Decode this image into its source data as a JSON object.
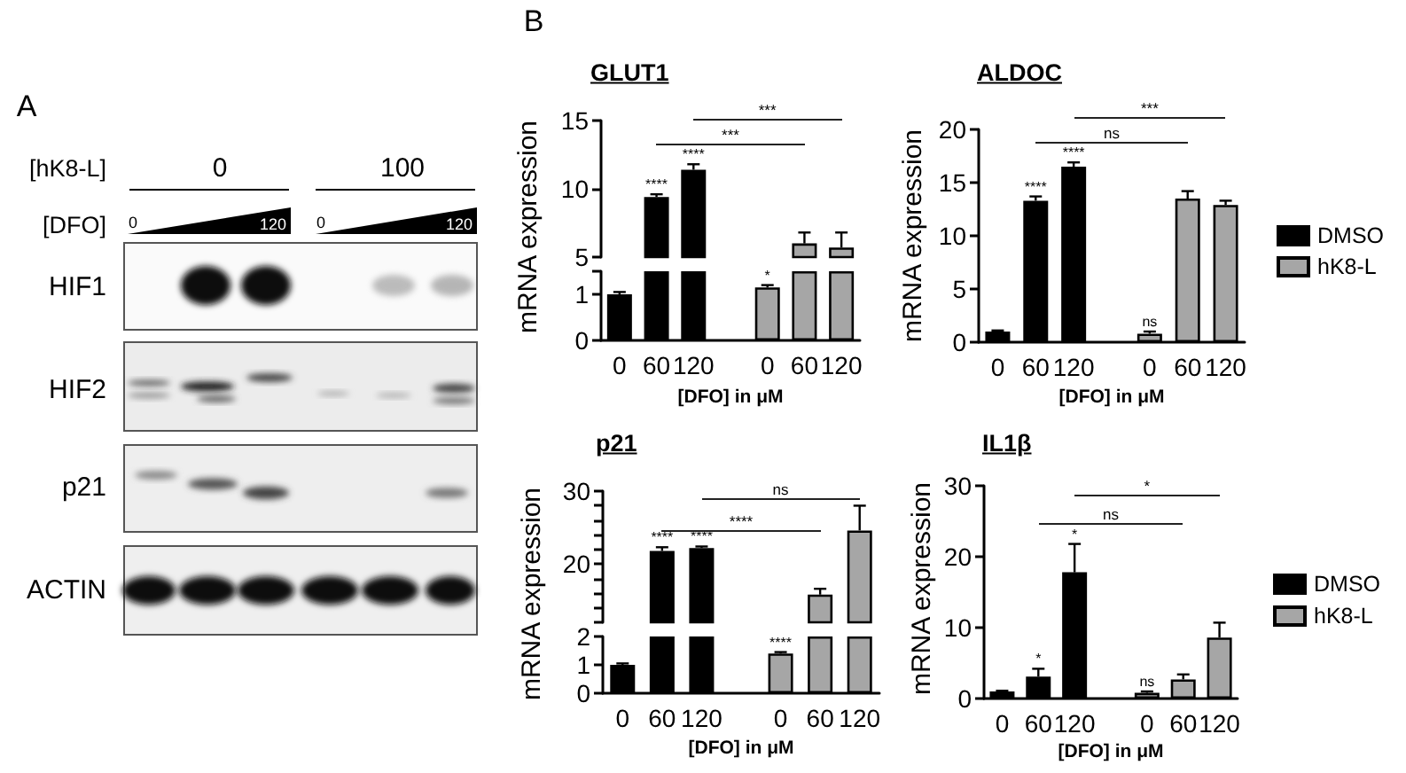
{
  "chart_data": [
    {
      "type": "other",
      "annotations": [
        "A",
        "B",
        "[hK8-L]",
        "0",
        "100",
        "[DFO]",
        "0",
        "120",
        "0",
        "120",
        "HIF1",
        "HIF2",
        "p21",
        "ACTIN"
      ]
    },
    {
      "type": "bar",
      "title": "GLUT1",
      "ylabel": "mRNA expression",
      "categories": [
        "0",
        "60",
        "120",
        null,
        "0",
        "60",
        "120"
      ],
      "series": [
        {
          "color": "#000000",
          "values": [
            null,
            9.4,
            11.4,
            null,
            null,
            null,
            null
          ],
          "errors": [
            null,
            [
              9.4,
              9.6
            ],
            [
              11.4,
              11.8
            ],
            null,
            null,
            null,
            null
          ],
          "value_labels": [
            null,
            "****",
            "****",
            null,
            null,
            null,
            null
          ]
        },
        {
          "color": "#a6a6a6",
          "values": [
            null,
            null,
            null,
            null,
            null,
            6.0,
            5.7
          ],
          "errors": [
            null,
            null,
            null,
            null,
            null,
            [
              6.0,
              6.8
            ],
            [
              5.7,
              6.8
            ]
          ]
        }
      ],
      "ylim": [
        5,
        15
      ],
      "yticks": [
        5,
        10,
        15
      ],
      "tick_labels": "y",
      "annotations": [
        "***",
        "***"
      ]
    },
    {
      "type": "bar",
      "xlabel": "[DFO] in μM",
      "categories": [
        "0",
        "60",
        "120",
        null,
        "0",
        "60",
        "120"
      ],
      "series": [
        {
          "color": "#000000",
          "values": [
            1.0,
            1.5,
            1.5,
            null,
            null,
            null,
            null
          ],
          "errors": [
            [
              1.0,
              1.05
            ],
            null,
            null,
            null,
            null,
            null,
            null
          ]
        },
        {
          "color": "#a6a6a6",
          "values": [
            null,
            null,
            null,
            null,
            1.15,
            1.5,
            1.5
          ],
          "errors": [
            null,
            null,
            null,
            null,
            [
              1.15,
              1.2
            ],
            null,
            null
          ],
          "value_labels": [
            null,
            null,
            null,
            null,
            "*",
            null,
            null
          ]
        }
      ],
      "ylim": [
        0,
        1.5
      ],
      "yticks": [
        0,
        1,
        {
          "value": 1.5,
          "label": null
        }
      ]
    },
    {
      "type": "bar",
      "title": "ALDOC",
      "ylabel": "mRNA expression",
      "xlabel": "[DFO] in μM",
      "categories": [
        "0",
        "60",
        "120",
        null,
        "0",
        "60",
        "120"
      ],
      "series": [
        {
          "name": "DMSO",
          "color": "#000000",
          "values": [
            1.0,
            13.3,
            16.5,
            null,
            null,
            null,
            null
          ],
          "errors": [
            [
              1.0,
              1.1
            ],
            [
              13.3,
              13.7
            ],
            [
              16.5,
              16.9
            ],
            null,
            null,
            null,
            null
          ],
          "value_labels": [
            null,
            "****",
            "****",
            null,
            null,
            null,
            null
          ]
        },
        {
          "name": "hK8-L",
          "color": "#a6a6a6",
          "values": [
            null,
            null,
            null,
            null,
            0.8,
            13.5,
            12.9
          ],
          "errors": [
            null,
            null,
            null,
            null,
            [
              0.8,
              1.0
            ],
            [
              13.5,
              14.2
            ],
            [
              12.9,
              13.3
            ]
          ],
          "value_labels": [
            null,
            null,
            null,
            null,
            "ns",
            null,
            null
          ]
        }
      ],
      "ylim": [
        0,
        20
      ],
      "yticks": [
        0,
        5,
        10,
        15,
        20
      ],
      "legend": "right",
      "annotations": [
        "***",
        "ns"
      ]
    },
    {
      "type": "bar",
      "title": "p21",
      "ylabel": "mRNA expression",
      "categories": [
        "0",
        "60",
        "120",
        null,
        "0",
        "60",
        "120"
      ],
      "series": [
        {
          "color": "#000000",
          "values": [
            null,
            21.8,
            22.2,
            null,
            null,
            null,
            null
          ],
          "errors": [
            null,
            [
              21.8,
              22.3
            ],
            [
              22.2,
              22.4
            ],
            null,
            null,
            null,
            null
          ],
          "value_labels": [
            null,
            "****",
            "****",
            null,
            null,
            null,
            null
          ]
        },
        {
          "color": "#a6a6a6",
          "values": [
            null,
            null,
            null,
            null,
            null,
            15.8,
            24.6
          ],
          "errors": [
            null,
            null,
            null,
            null,
            null,
            [
              15.8,
              16.6
            ],
            [
              24.6,
              28.0
            ]
          ]
        }
      ],
      "ylim": [
        12,
        30
      ],
      "yticks": [
        {
          "value": 12,
          "label": null
        },
        {
          "value": 14,
          "label": null
        },
        {
          "value": 16,
          "label": null
        },
        {
          "value": 18,
          "label": null
        },
        20,
        {
          "value": 22,
          "label": null
        },
        {
          "value": 24,
          "label": null
        },
        {
          "value": 26,
          "label": null
        },
        {
          "value": 28,
          "label": null
        },
        30
      ],
      "tick_labels": "y",
      "annotations": [
        "ns",
        "****"
      ]
    },
    {
      "type": "bar",
      "xlabel": "[DFO] in μM",
      "categories": [
        "0",
        "60",
        "120",
        null,
        "0",
        "60",
        "120"
      ],
      "series": [
        {
          "color": "#000000",
          "values": [
            1.0,
            2,
            2,
            null,
            null,
            null,
            null
          ],
          "errors": [
            [
              1.0,
              1.05
            ],
            null,
            null,
            null,
            null,
            null,
            null
          ]
        },
        {
          "color": "#a6a6a6",
          "values": [
            null,
            null,
            null,
            null,
            1.4,
            2,
            2
          ],
          "errors": [
            null,
            null,
            null,
            null,
            [
              1.4,
              1.45
            ],
            null,
            null
          ],
          "value_labels": [
            null,
            null,
            null,
            null,
            "****",
            null,
            null
          ]
        }
      ],
      "ylim": [
        0,
        2
      ],
      "yticks": [
        0,
        1,
        2
      ]
    },
    {
      "type": "bar",
      "title": "IL1β",
      "ylabel": "mRNA expression",
      "xlabel": "[DFO] in μM",
      "categories": [
        "0",
        "60",
        "120",
        null,
        "0",
        "60",
        "120"
      ],
      "series": [
        {
          "name": "DMSO",
          "color": "#000000",
          "values": [
            1.0,
            3.1,
            17.8,
            null,
            null,
            null,
            null
          ],
          "errors": [
            [
              1.0,
              1.1
            ],
            [
              3.1,
              4.2
            ],
            [
              17.8,
              21.8
            ],
            null,
            null,
            null,
            null
          ],
          "value_labels": [
            null,
            "*",
            "*",
            null,
            null,
            null,
            null
          ]
        },
        {
          "name": "hK8-L",
          "color": "#a6a6a6",
          "values": [
            null,
            null,
            null,
            null,
            0.8,
            2.7,
            8.6
          ],
          "errors": [
            null,
            null,
            null,
            null,
            [
              0.8,
              1.0
            ],
            [
              2.7,
              3.4
            ],
            [
              8.6,
              10.7
            ]
          ],
          "value_labels": [
            null,
            null,
            null,
            null,
            "ns",
            null,
            null
          ]
        }
      ],
      "ylim": [
        0,
        30
      ],
      "yticks": [
        0,
        10,
        20,
        30
      ],
      "legend": "right",
      "annotations": [
        "*",
        "ns"
      ]
    }
  ]
}
